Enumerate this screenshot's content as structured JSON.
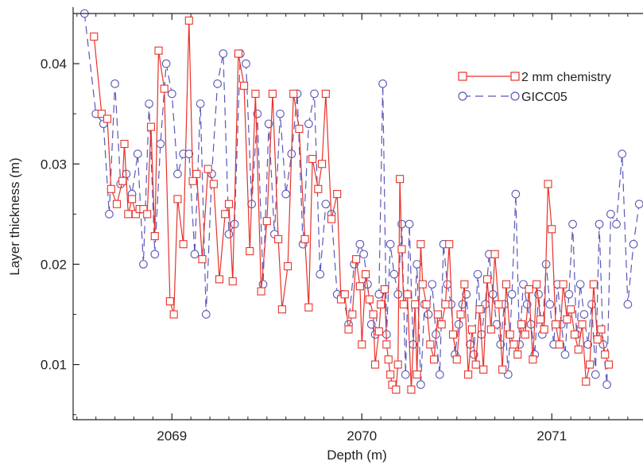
{
  "chart_data": {
    "type": "line",
    "xlabel": "Depth (m)",
    "ylabel": "Layer thickness (m)",
    "xlim": [
      2068.48,
      2071.48
    ],
    "ylim": [
      0.0045,
      0.045
    ],
    "xticks": [
      2069,
      2070,
      2071
    ],
    "xtick_labels": [
      "2069",
      "2070",
      "2071"
    ],
    "yticks": [
      0.01,
      0.02,
      0.03,
      0.04
    ],
    "ytick_labels": [
      "0.01",
      "0.02",
      "0.03",
      "0.04"
    ],
    "grid": false,
    "legend_position": "top-right",
    "series": [
      {
        "name": "2 mm chemistry",
        "color": "#e8322a",
        "marker": "square",
        "dash": "solid",
        "x": [
          2068.59,
          2068.63,
          2068.66,
          2068.68,
          2068.71,
          2068.74,
          2068.75,
          2068.77,
          2068.79,
          2068.81,
          2068.83,
          2068.85,
          2068.87,
          2068.89,
          2068.91,
          2068.93,
          2068.96,
          2068.99,
          2069.01,
          2069.03,
          2069.06,
          2069.09,
          2069.11,
          2069.13,
          2069.16,
          2069.19,
          2069.22,
          2069.25,
          2069.28,
          2069.3,
          2069.32,
          2069.35,
          2069.38,
          2069.41,
          2069.44,
          2069.47,
          2069.5,
          2069.53,
          2069.56,
          2069.58,
          2069.61,
          2069.64,
          2069.67,
          2069.7,
          2069.72,
          2069.74,
          2069.77,
          2069.79,
          2069.81,
          2069.84,
          2069.87,
          2069.89,
          2069.91,
          2069.93,
          2069.95,
          2069.97,
          2069.99,
          2070.0,
          2070.02,
          2070.04,
          2070.06,
          2070.07,
          2070.09,
          2070.1,
          2070.12,
          2070.13,
          2070.14,
          2070.15,
          2070.16,
          2070.18,
          2070.19,
          2070.2,
          2070.21,
          2070.22,
          2070.24,
          2070.26,
          2070.28,
          2070.29,
          2070.31,
          2070.32,
          2070.34,
          2070.36,
          2070.38,
          2070.4,
          2070.42,
          2070.44,
          2070.46,
          2070.48,
          2070.5,
          2070.52,
          2070.54,
          2070.56,
          2070.58,
          2070.6,
          2070.62,
          2070.64,
          2070.66,
          2070.68,
          2070.7,
          2070.72,
          2070.74,
          2070.76,
          2070.78,
          2070.8,
          2070.82,
          2070.84,
          2070.86,
          2070.88,
          2070.9,
          2070.92,
          2070.94,
          2070.96,
          2070.98,
          2071.0,
          2071.02,
          2071.04,
          2071.06,
          2071.08,
          2071.1,
          2071.12,
          2071.14,
          2071.16,
          2071.18,
          2071.2,
          2071.22,
          2071.24,
          2071.26,
          2071.28,
          2071.3
        ],
        "y": [
          0.0427,
          0.035,
          0.0345,
          0.0275,
          0.026,
          0.0283,
          0.032,
          0.025,
          0.0265,
          0.025,
          0.0255,
          0.0255,
          0.025,
          0.0337,
          0.0228,
          0.0413,
          0.0375,
          0.0163,
          0.015,
          0.0265,
          0.022,
          0.0443,
          0.0283,
          0.029,
          0.0205,
          0.0295,
          0.028,
          0.0185,
          0.025,
          0.026,
          0.0183,
          0.041,
          0.0378,
          0.0213,
          0.037,
          0.0173,
          0.0243,
          0.037,
          0.0225,
          0.0155,
          0.0198,
          0.037,
          0.0335,
          0.0225,
          0.0157,
          0.0305,
          0.0275,
          0.03,
          0.037,
          0.0245,
          0.027,
          0.0165,
          0.017,
          0.0135,
          0.015,
          0.0205,
          0.0178,
          0.012,
          0.019,
          0.0165,
          0.015,
          0.01,
          0.0133,
          0.016,
          0.0175,
          0.012,
          0.0105,
          0.009,
          0.008,
          0.0075,
          0.01,
          0.0285,
          0.0215,
          0.016,
          0.017,
          0.0075,
          0.016,
          0.009,
          0.022,
          0.018,
          0.016,
          0.012,
          0.0105,
          0.015,
          0.014,
          0.016,
          0.022,
          0.013,
          0.0105,
          0.015,
          0.018,
          0.009,
          0.0135,
          0.01,
          0.0155,
          0.0095,
          0.0185,
          0.0135,
          0.021,
          0.016,
          0.0095,
          0.018,
          0.013,
          0.012,
          0.011,
          0.014,
          0.013,
          0.0175,
          0.0105,
          0.018,
          0.0145,
          0.0135,
          0.028,
          0.0235,
          0.014,
          0.012,
          0.018,
          0.0145,
          0.0155,
          0.013,
          0.0115,
          0.014,
          0.0083,
          0.01,
          0.018,
          0.0125,
          0.0135,
          0.011,
          0.01
        ]
      },
      {
        "name": "GICC05",
        "color": "#5a58b8",
        "marker": "circle",
        "dash": "dashed",
        "x": [
          2068.54,
          2068.6,
          2068.64,
          2068.67,
          2068.7,
          2068.73,
          2068.76,
          2068.79,
          2068.82,
          2068.85,
          2068.88,
          2068.91,
          2068.94,
          2068.97,
          2069.0,
          2069.03,
          2069.06,
          2069.09,
          2069.12,
          2069.15,
          2069.18,
          2069.21,
          2069.24,
          2069.27,
          2069.3,
          2069.33,
          2069.36,
          2069.39,
          2069.42,
          2069.45,
          2069.48,
          2069.51,
          2069.54,
          2069.57,
          2069.6,
          2069.63,
          2069.66,
          2069.69,
          2069.72,
          2069.75,
          2069.78,
          2069.81,
          2069.84,
          2069.87,
          2069.9,
          2069.93,
          2069.96,
          2069.99,
          2070.01,
          2070.03,
          2070.05,
          2070.07,
          2070.09,
          2070.11,
          2070.13,
          2070.15,
          2070.17,
          2070.19,
          2070.21,
          2070.23,
          2070.25,
          2070.27,
          2070.29,
          2070.31,
          2070.33,
          2070.35,
          2070.37,
          2070.39,
          2070.41,
          2070.43,
          2070.45,
          2070.47,
          2070.49,
          2070.51,
          2070.53,
          2070.55,
          2070.57,
          2070.59,
          2070.61,
          2070.63,
          2070.65,
          2070.67,
          2070.69,
          2070.71,
          2070.73,
          2070.75,
          2070.77,
          2070.79,
          2070.81,
          2070.83,
          2070.85,
          2070.87,
          2070.89,
          2070.91,
          2070.93,
          2070.95,
          2070.97,
          2070.99,
          2071.01,
          2071.03,
          2071.05,
          2071.07,
          2071.09,
          2071.11,
          2071.13,
          2071.15,
          2071.17,
          2071.19,
          2071.21,
          2071.23,
          2071.25,
          2071.27,
          2071.29,
          2071.31,
          2071.34,
          2071.37,
          2071.4,
          2071.43,
          2071.46
        ],
        "y": [
          0.045,
          0.035,
          0.034,
          0.025,
          0.038,
          0.028,
          0.029,
          0.027,
          0.031,
          0.02,
          0.036,
          0.021,
          0.032,
          0.04,
          0.037,
          0.029,
          0.031,
          0.031,
          0.021,
          0.036,
          0.015,
          0.029,
          0.038,
          0.041,
          0.023,
          0.024,
          0.041,
          0.04,
          0.026,
          0.035,
          0.018,
          0.034,
          0.023,
          0.035,
          0.027,
          0.031,
          0.037,
          0.022,
          0.034,
          0.037,
          0.019,
          0.026,
          0.025,
          0.017,
          0.017,
          0.014,
          0.02,
          0.022,
          0.021,
          0.018,
          0.014,
          0.013,
          0.017,
          0.038,
          0.013,
          0.022,
          0.019,
          0.017,
          0.024,
          0.009,
          0.024,
          0.012,
          0.02,
          0.008,
          0.016,
          0.015,
          0.018,
          0.013,
          0.009,
          0.022,
          0.018,
          0.016,
          0.011,
          0.014,
          0.016,
          0.017,
          0.012,
          0.011,
          0.019,
          0.013,
          0.016,
          0.021,
          0.017,
          0.014,
          0.012,
          0.016,
          0.009,
          0.017,
          0.027,
          0.012,
          0.018,
          0.016,
          0.014,
          0.011,
          0.017,
          0.013,
          0.02,
          0.016,
          0.012,
          0.018,
          0.014,
          0.011,
          0.017,
          0.024,
          0.013,
          0.018,
          0.015,
          0.012,
          0.016,
          0.009,
          0.024,
          0.012,
          0.008,
          0.025,
          0.024,
          0.031,
          0.016,
          0.022,
          0.026
        ]
      }
    ]
  }
}
